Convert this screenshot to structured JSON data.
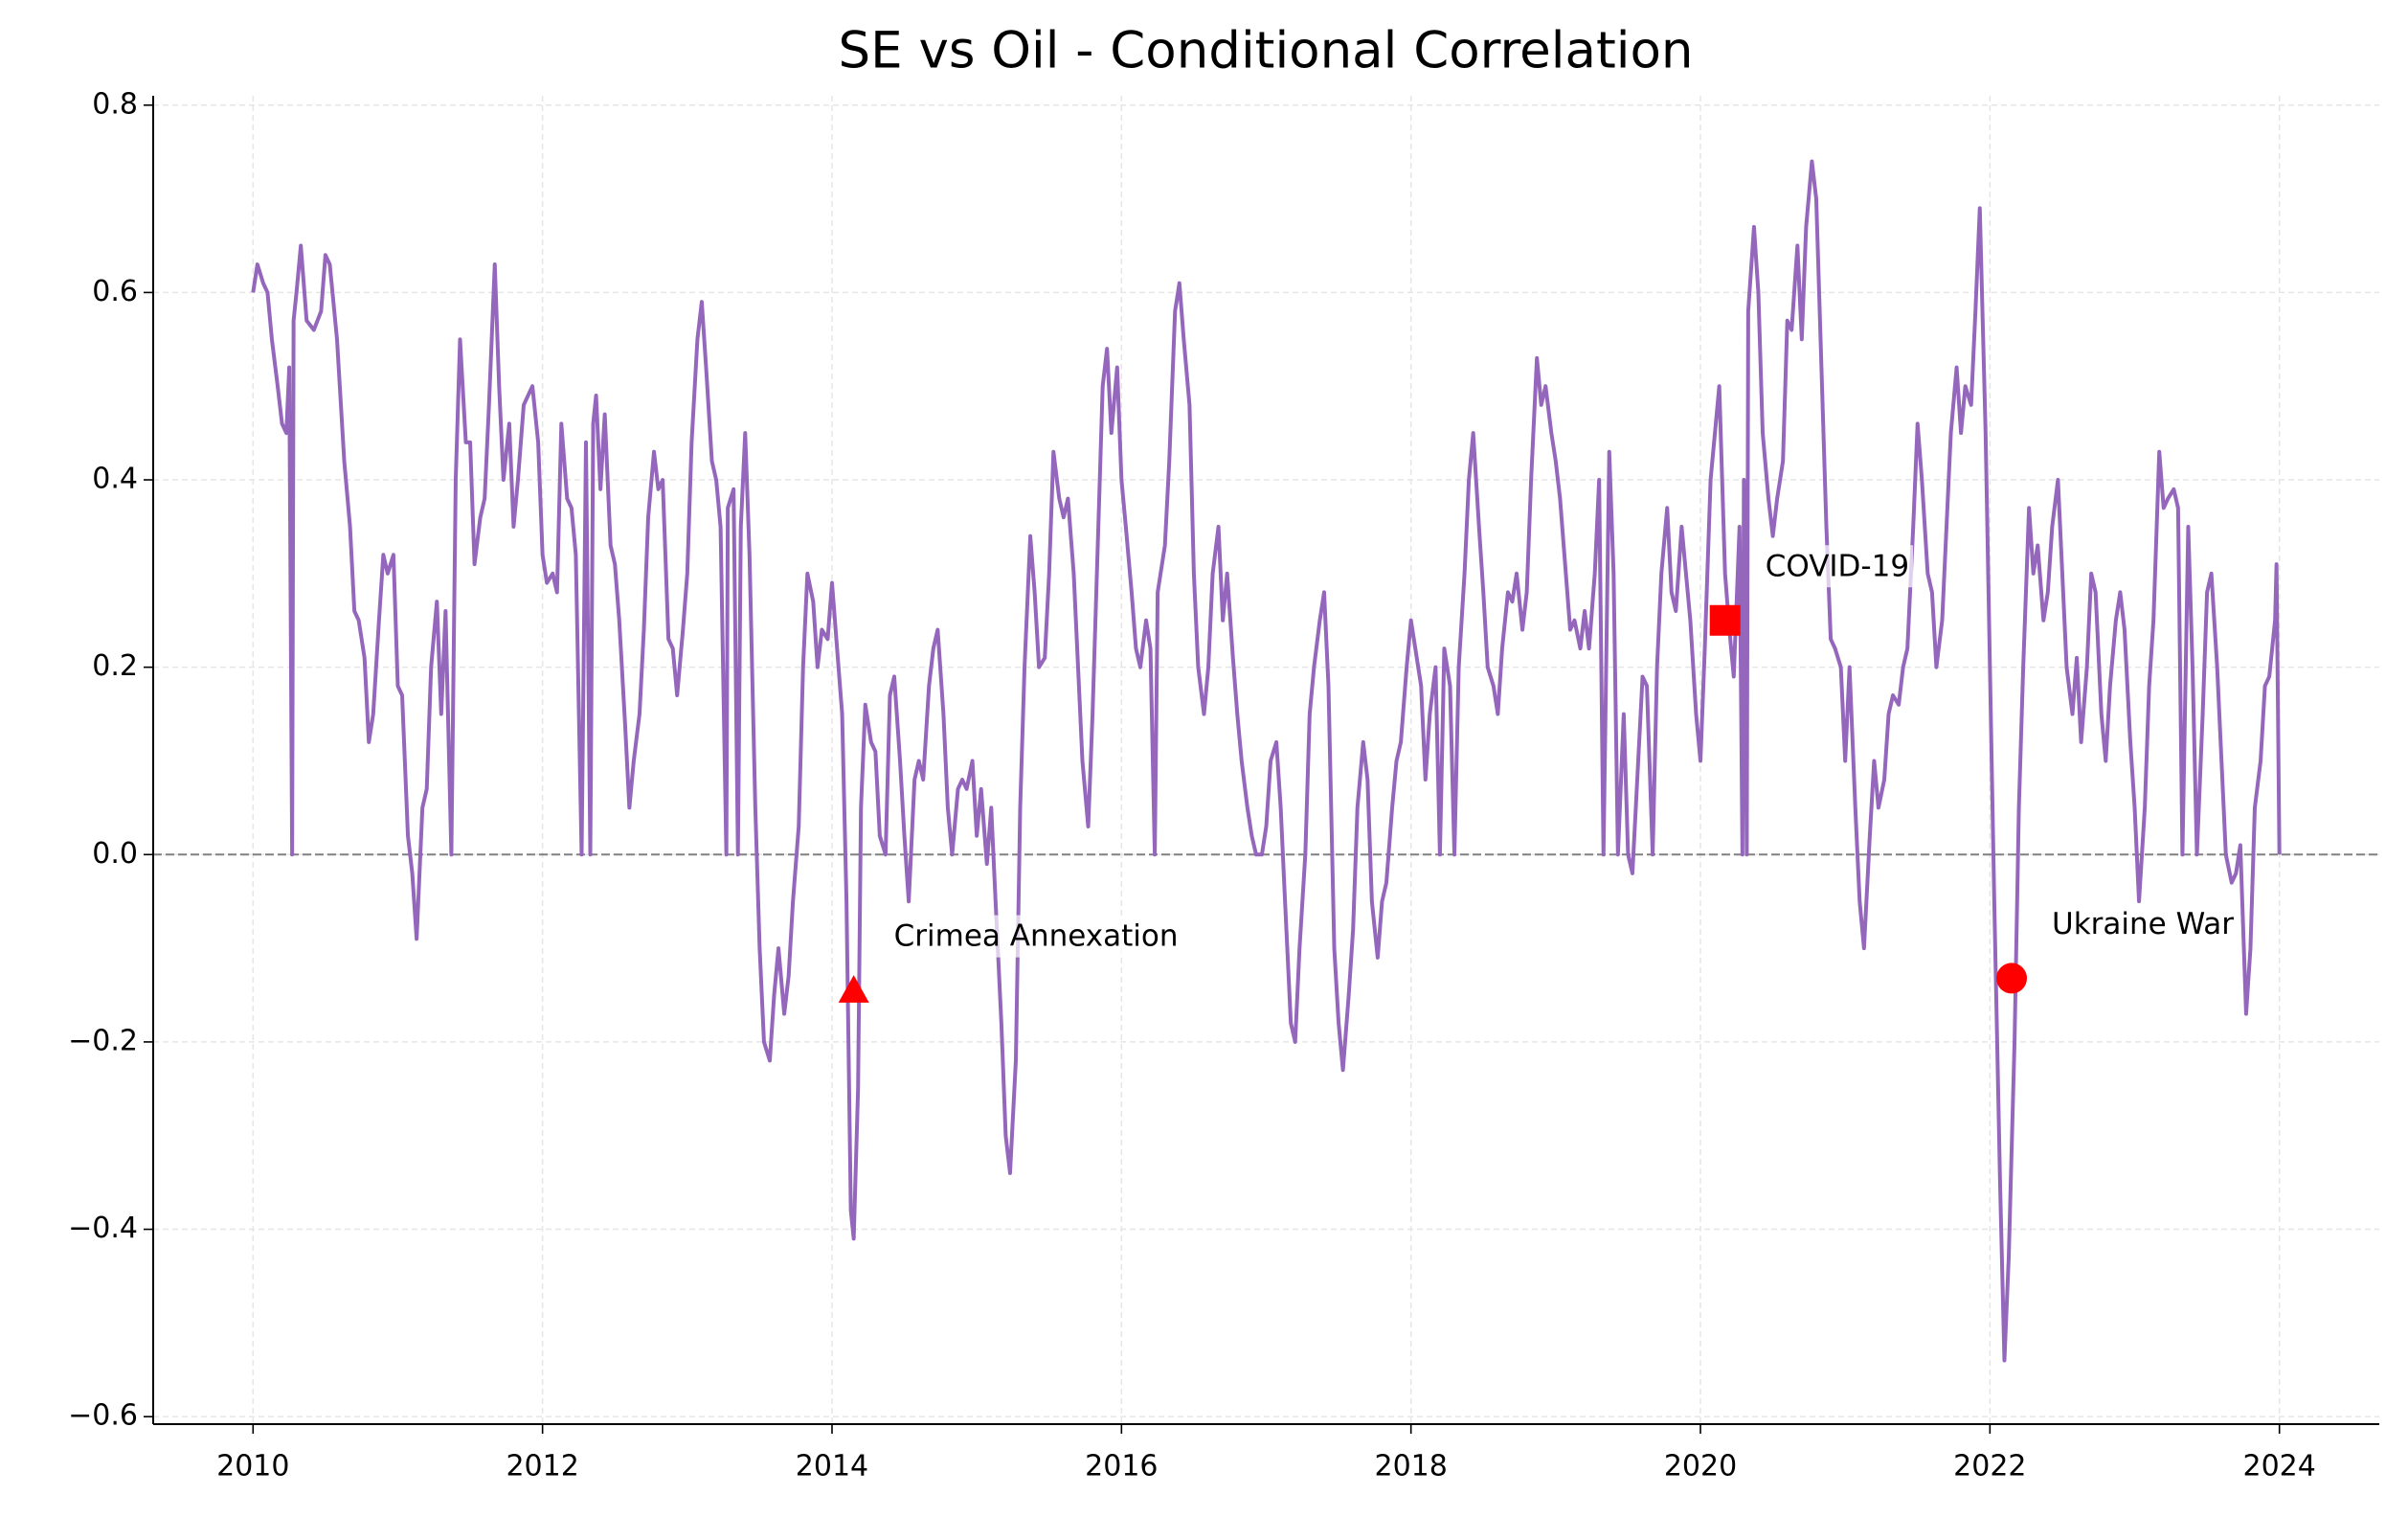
{
  "chart_data": {
    "type": "line",
    "title": "SE vs Oil - Conditional Correlation",
    "xlim": [
      2009.31,
      2024.69
    ],
    "xticks": [
      2010,
      2012,
      2014,
      2016,
      2018,
      2020,
      2022,
      2024
    ],
    "ylim": [
      -0.608,
      0.81
    ],
    "yticks": [
      {
        "value": -0.6,
        "label": "−0.6"
      },
      {
        "value": -0.4,
        "label": "−0.4"
      },
      {
        "value": -0.2,
        "label": "−0.2"
      },
      {
        "value": 0,
        "label": "0.0"
      },
      0.2,
      0.4,
      0.6,
      0.8
    ],
    "grid": true,
    "hline": 0,
    "hline_color": "#808080",
    "series": [
      {
        "color": "#9467bd",
        "x": [
          2010.0,
          2010.03,
          2010.07,
          2010.1,
          2010.13,
          2010.17,
          2010.2,
          2010.23,
          2010.25,
          2010.27,
          2010.28,
          2010.3,
          2010.33,
          2010.37,
          2010.42,
          2010.47,
          2010.5,
          2010.53,
          2010.58,
          2010.63,
          2010.67,
          2010.7,
          2010.73,
          2010.77,
          2010.8,
          2010.83,
          2010.87,
          2010.9,
          2010.93,
          2010.97,
          2011.0,
          2011.03,
          2011.07,
          2011.1,
          2011.13,
          2011.17,
          2011.2,
          2011.23,
          2011.27,
          2011.3,
          2011.33,
          2011.37,
          2011.4,
          2011.43,
          2011.47,
          2011.5,
          2011.53,
          2011.57,
          2011.6,
          2011.63,
          2011.67,
          2011.7,
          2011.73,
          2011.77,
          2011.8,
          2011.83,
          2011.87,
          2011.9,
          2011.93,
          2011.97,
          2012.0,
          2012.03,
          2012.07,
          2012.1,
          2012.13,
          2012.17,
          2012.2,
          2012.23,
          2012.27,
          2012.3,
          2012.33,
          2012.35,
          2012.37,
          2012.4,
          2012.43,
          2012.47,
          2012.5,
          2012.53,
          2012.57,
          2012.6,
          2012.63,
          2012.67,
          2012.7,
          2012.73,
          2012.77,
          2012.8,
          2012.83,
          2012.87,
          2012.9,
          2012.93,
          2012.97,
          2013.0,
          2013.03,
          2013.07,
          2013.1,
          2013.13,
          2013.17,
          2013.2,
          2013.23,
          2013.27,
          2013.28,
          2013.32,
          2013.35,
          2013.37,
          2013.4,
          2013.43,
          2013.47,
          2013.5,
          2013.53,
          2013.57,
          2013.6,
          2013.63,
          2013.67,
          2013.7,
          2013.73,
          2013.77,
          2013.8,
          2013.83,
          2013.87,
          2013.9,
          2013.93,
          2013.97,
          2014.0,
          2014.03,
          2014.07,
          2014.1,
          2014.13,
          2014.15,
          2014.18,
          2014.2,
          2014.23,
          2014.27,
          2014.3,
          2014.33,
          2014.37,
          2014.4,
          2014.43,
          2014.47,
          2014.5,
          2014.53,
          2014.57,
          2014.6,
          2014.63,
          2014.67,
          2014.7,
          2014.73,
          2014.77,
          2014.8,
          2014.83,
          2014.87,
          2014.9,
          2014.93,
          2014.97,
          2015.0,
          2015.03,
          2015.07,
          2015.1,
          2015.13,
          2015.17,
          2015.2,
          2015.23,
          2015.27,
          2015.3,
          2015.33,
          2015.37,
          2015.4,
          2015.43,
          2015.47,
          2015.5,
          2015.53,
          2015.57,
          2015.6,
          2015.63,
          2015.67,
          2015.7,
          2015.73,
          2015.77,
          2015.8,
          2015.83,
          2015.87,
          2015.9,
          2015.93,
          2015.97,
          2016.0,
          2016.03,
          2016.07,
          2016.1,
          2016.13,
          2016.17,
          2016.2,
          2016.23,
          2016.25,
          2016.3,
          2016.33,
          2016.37,
          2016.4,
          2016.43,
          2016.47,
          2016.5,
          2016.53,
          2016.57,
          2016.6,
          2016.63,
          2016.67,
          2016.7,
          2016.73,
          2016.77,
          2016.8,
          2016.83,
          2016.87,
          2016.9,
          2016.93,
          2016.97,
          2017.0,
          2017.03,
          2017.07,
          2017.1,
          2017.13,
          2017.17,
          2017.2,
          2017.23,
          2017.27,
          2017.3,
          2017.33,
          2017.37,
          2017.4,
          2017.43,
          2017.47,
          2017.5,
          2017.53,
          2017.57,
          2017.6,
          2017.63,
          2017.67,
          2017.7,
          2017.73,
          2017.77,
          2017.8,
          2017.83,
          2017.87,
          2017.9,
          2017.93,
          2017.97,
          2018.0,
          2018.03,
          2018.07,
          2018.1,
          2018.13,
          2018.17,
          2018.2,
          2018.23,
          2018.27,
          2018.3,
          2018.33,
          2018.37,
          2018.4,
          2018.43,
          2018.47,
          2018.5,
          2018.53,
          2018.57,
          2018.6,
          2018.63,
          2018.67,
          2018.7,
          2018.73,
          2018.77,
          2018.8,
          2018.83,
          2018.87,
          2018.9,
          2018.93,
          2018.97,
          2019.0,
          2019.03,
          2019.07,
          2019.1,
          2019.13,
          2019.17,
          2019.2,
          2019.23,
          2019.27,
          2019.3,
          2019.33,
          2019.37,
          2019.4,
          2019.43,
          2019.47,
          2019.5,
          2019.53,
          2019.57,
          2019.6,
          2019.63,
          2019.67,
          2019.7,
          2019.73,
          2019.77,
          2019.8,
          2019.83,
          2019.87,
          2019.9,
          2019.93,
          2019.97,
          2020.0,
          2020.03,
          2020.07,
          2020.1,
          2020.13,
          2020.17,
          2020.2,
          2020.23,
          2020.27,
          2020.29,
          2020.3,
          2020.32,
          2020.33,
          2020.37,
          2020.4,
          2020.43,
          2020.47,
          2020.5,
          2020.53,
          2020.57,
          2020.6,
          2020.63,
          2020.67,
          2020.7,
          2020.73,
          2020.77,
          2020.8,
          2020.83,
          2020.87,
          2020.9,
          2020.93,
          2020.97,
          2021.0,
          2021.03,
          2021.07,
          2021.1,
          2021.13,
          2021.17,
          2021.2,
          2021.23,
          2021.27,
          2021.3,
          2021.33,
          2021.37,
          2021.4,
          2021.43,
          2021.47,
          2021.5,
          2021.53,
          2021.57,
          2021.6,
          2021.63,
          2021.67,
          2021.7,
          2021.73,
          2021.77,
          2021.8,
          2021.83,
          2021.87,
          2021.9,
          2021.93,
          2021.97,
          2022.0,
          2022.03,
          2022.07,
          2022.1,
          2022.13,
          2022.17,
          2022.2,
          2022.23,
          2022.27,
          2022.3,
          2022.33,
          2022.37,
          2022.4,
          2022.43,
          2022.47,
          2022.5,
          2022.53,
          2022.57,
          2022.6,
          2022.63,
          2022.67,
          2022.7,
          2022.73,
          2022.77,
          2022.8,
          2022.83,
          2022.87,
          2022.9,
          2022.93,
          2022.97,
          2023.0,
          2023.03,
          2023.07,
          2023.1,
          2023.13,
          2023.17,
          2023.2,
          2023.23,
          2023.27,
          2023.3,
          2023.33,
          2023.37,
          2023.4,
          2023.43,
          2023.47,
          2023.5,
          2023.53,
          2023.57,
          2023.6,
          2023.63,
          2023.67,
          2023.7,
          2023.73,
          2023.77,
          2023.8,
          2023.83,
          2023.87,
          2023.9,
          2023.93,
          2023.97,
          2023.98,
          2024.0
        ],
        "values": [
          0.6,
          0.63,
          0.61,
          0.6,
          0.55,
          0.5,
          0.46,
          0.45,
          0.52,
          0.0,
          0.57,
          0.6,
          0.65,
          0.57,
          0.56,
          0.58,
          0.64,
          0.63,
          0.55,
          0.42,
          0.35,
          0.26,
          0.25,
          0.21,
          0.12,
          0.15,
          0.25,
          0.32,
          0.3,
          0.32,
          0.18,
          0.17,
          0.02,
          -0.02,
          -0.09,
          0.05,
          0.07,
          0.2,
          0.27,
          0.15,
          0.26,
          0.0,
          0.4,
          0.55,
          0.44,
          0.44,
          0.31,
          0.36,
          0.38,
          0.48,
          0.63,
          0.5,
          0.4,
          0.46,
          0.35,
          0.4,
          0.48,
          0.49,
          0.5,
          0.44,
          0.32,
          0.29,
          0.3,
          0.28,
          0.46,
          0.38,
          0.37,
          0.32,
          0.0,
          0.44,
          0.0,
          0.46,
          0.49,
          0.39,
          0.47,
          0.33,
          0.31,
          0.25,
          0.14,
          0.05,
          0.1,
          0.15,
          0.24,
          0.36,
          0.43,
          0.39,
          0.4,
          0.23,
          0.22,
          0.17,
          0.24,
          0.3,
          0.44,
          0.55,
          0.59,
          0.52,
          0.42,
          0.4,
          0.35,
          0.0,
          0.37,
          0.39,
          0.0,
          0.35,
          0.45,
          0.32,
          0.05,
          -0.1,
          -0.2,
          -0.22,
          -0.15,
          -0.1,
          -0.17,
          -0.13,
          -0.05,
          0.03,
          0.2,
          0.3,
          0.27,
          0.2,
          0.24,
          0.23,
          0.29,
          0.23,
          0.15,
          -0.05,
          -0.38,
          -0.41,
          -0.25,
          0.05,
          0.16,
          0.12,
          0.11,
          0.02,
          0.0,
          0.17,
          0.19,
          0.1,
          0.02,
          -0.05,
          0.08,
          0.1,
          0.08,
          0.18,
          0.22,
          0.24,
          0.15,
          0.05,
          0.0,
          0.07,
          0.08,
          0.07,
          0.1,
          0.02,
          0.07,
          -0.01,
          0.05,
          -0.05,
          -0.18,
          -0.3,
          -0.34,
          -0.22,
          0.05,
          0.2,
          0.34,
          0.28,
          0.2,
          0.21,
          0.3,
          0.43,
          0.38,
          0.36,
          0.38,
          0.3,
          0.2,
          0.1,
          0.03,
          0.15,
          0.3,
          0.5,
          0.54,
          0.45,
          0.52,
          0.4,
          0.35,
          0.28,
          0.22,
          0.2,
          0.25,
          0.22,
          0.0,
          0.28,
          0.33,
          0.42,
          0.58,
          0.61,
          0.55,
          0.48,
          0.3,
          0.2,
          0.15,
          0.2,
          0.3,
          0.35,
          0.25,
          0.3,
          0.21,
          0.15,
          0.1,
          0.05,
          0.02,
          0.0,
          0.0,
          0.03,
          0.1,
          0.12,
          0.05,
          -0.05,
          -0.18,
          -0.2,
          -0.1,
          0.0,
          0.15,
          0.2,
          0.25,
          0.28,
          0.18,
          -0.1,
          -0.18,
          -0.23,
          -0.15,
          -0.08,
          0.05,
          0.12,
          0.08,
          -0.05,
          -0.11,
          -0.05,
          -0.03,
          0.05,
          0.1,
          0.12,
          0.2,
          0.25,
          0.22,
          0.18,
          0.08,
          0.15,
          0.2,
          0.0,
          0.22,
          0.18,
          0.0,
          0.2,
          0.3,
          0.4,
          0.45,
          0.35,
          0.28,
          0.2,
          0.18,
          0.15,
          0.22,
          0.28,
          0.27,
          0.3,
          0.24,
          0.28,
          0.4,
          0.53,
          0.48,
          0.5,
          0.45,
          0.42,
          0.38,
          0.3,
          0.24,
          0.25,
          0.22,
          0.26,
          0.22,
          0.3,
          0.4,
          0.0,
          0.43,
          0.3,
          0.0,
          0.15,
          0.0,
          -0.02,
          0.1,
          0.19,
          0.18,
          0.0,
          0.2,
          0.3,
          0.37,
          0.28,
          0.26,
          0.35,
          0.3,
          0.25,
          0.15,
          0.1,
          0.22,
          0.4,
          0.45,
          0.5,
          0.3,
          0.24,
          0.19,
          0.35,
          0.0,
          0.4,
          0.0,
          0.58,
          0.67,
          0.6,
          0.45,
          0.38,
          0.34,
          0.38,
          0.42,
          0.57,
          0.56,
          0.65,
          0.55,
          0.67,
          0.74,
          0.7,
          0.55,
          0.35,
          0.23,
          0.22,
          0.2,
          0.1,
          0.2,
          0.05,
          -0.05,
          -0.1,
          0.02,
          0.1,
          0.05,
          0.08,
          0.15,
          0.17,
          0.16,
          0.2,
          0.22,
          0.35,
          0.46,
          0.4,
          0.3,
          0.28,
          0.2,
          0.25,
          0.35,
          0.45,
          0.52,
          0.45,
          0.5,
          0.48,
          0.58,
          0.69,
          0.45,
          0.2,
          -0.05,
          -0.35,
          -0.54,
          -0.43,
          -0.2,
          0.05,
          0.2,
          0.37,
          0.3,
          0.33,
          0.25,
          0.28,
          0.35,
          0.4,
          0.3,
          0.2,
          0.15,
          0.21,
          0.12,
          0.2,
          0.3,
          0.28,
          0.15,
          0.1,
          0.18,
          0.25,
          0.28,
          0.24,
          0.12,
          0.05,
          -0.05,
          0.05,
          0.18,
          0.25,
          0.43,
          0.37,
          0.38,
          0.39,
          0.37,
          0.0,
          0.35,
          0.2,
          0.0,
          0.15,
          0.28,
          0.3,
          0.2,
          0.1,
          0.0,
          -0.03,
          -0.02,
          0.01,
          -0.17,
          -0.1,
          0.05,
          0.1,
          0.18,
          0.19,
          0.25,
          0.31,
          0.0
        ]
      }
    ],
    "events": [
      {
        "label": "Crimea Annexation",
        "x": 2014.15,
        "y": -0.145,
        "marker": "triangle",
        "color": "#ff0000"
      },
      {
        "label": "COVID-19",
        "x": 2020.17,
        "y": 0.25,
        "marker": "square",
        "color": "#ff0000"
      },
      {
        "label": "Ukraine War",
        "x": 2022.15,
        "y": -0.132,
        "marker": "circle",
        "color": "#ff0000"
      }
    ]
  }
}
